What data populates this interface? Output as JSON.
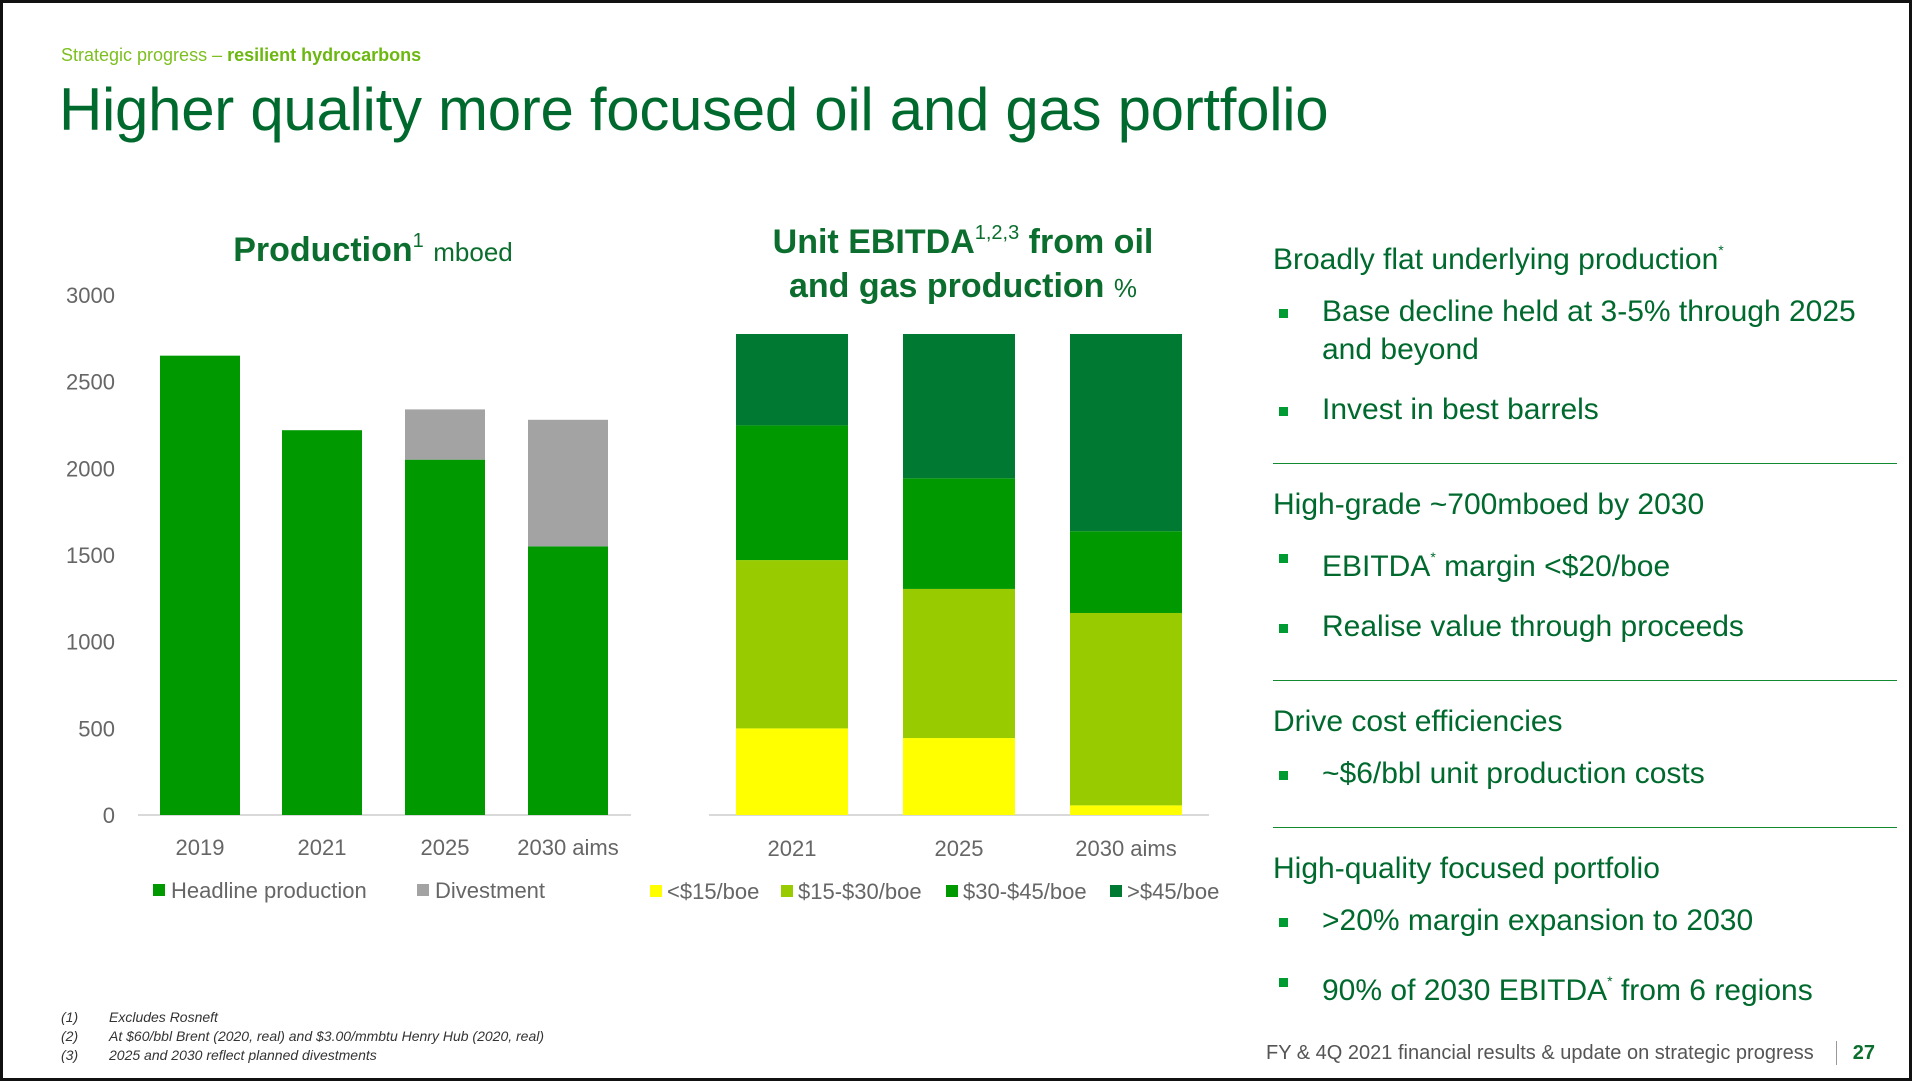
{
  "header": {
    "kicker_prefix": "Strategic progress – ",
    "kicker_bold": "resilient hydrocarbons",
    "title": "Higher quality more focused oil and gas portfolio"
  },
  "production_title": {
    "main": "Production",
    "sup": "1",
    "unit": "mboed"
  },
  "ebitda_title": {
    "line1": "Unit EBITDA",
    "sup": "1,2,3",
    "line1b": " from oil",
    "line2": "and gas production",
    "unit": "%"
  },
  "colors": {
    "headline": "#009a00",
    "divestment": "#a3a3a3",
    "lt15": "#ffff00",
    "15to30": "#99cc00",
    "30to45": "#009a00",
    "gt45": "#007a33"
  },
  "chart_data": [
    {
      "type": "bar",
      "stacked": true,
      "title": "Production mboed",
      "categories": [
        "2019",
        "2021",
        "2025",
        "2030 aims"
      ],
      "ylim": [
        0,
        3000
      ],
      "yticks": [
        0,
        500,
        1000,
        1500,
        2000,
        2500,
        3000
      ],
      "series": [
        {
          "name": "Headline production",
          "color": "#009a00",
          "values": [
            2650,
            2220,
            2050,
            1550
          ]
        },
        {
          "name": "Divestment",
          "color": "#a3a3a3",
          "values": [
            0,
            0,
            290,
            730
          ]
        }
      ],
      "legend": "bottom",
      "grid": false
    },
    {
      "type": "bar",
      "stacked": true,
      "title": "Unit EBITDA from oil and gas production %",
      "categories": [
        "2021",
        "2025",
        "2030 aims"
      ],
      "ylim": [
        0,
        100
      ],
      "series": [
        {
          "name": "<$15/boe",
          "color": "#ffff00",
          "values": [
            18,
            16,
            2
          ]
        },
        {
          "name": "$15-$30/boe",
          "color": "#99cc00",
          "values": [
            35,
            31,
            40
          ]
        },
        {
          "name": "$30-$45/boe",
          "color": "#009a00",
          "values": [
            28,
            23,
            17
          ]
        },
        {
          "name": ">$45/boe",
          "color": "#007a33",
          "values": [
            19,
            30,
            41
          ]
        }
      ],
      "legend": "bottom",
      "grid": false
    }
  ],
  "right_panel": [
    {
      "heading": "Broadly flat underlying production",
      "heading_sup": "*",
      "bullets": [
        {
          "text": "Base decline held at 3-5% through 2025 and beyond"
        },
        {
          "text": "Invest in best barrels"
        }
      ]
    },
    {
      "heading": "High-grade ~700mboed by 2030",
      "heading_sup": "",
      "bullets": [
        {
          "pre": "EBITDA",
          "sup": "*",
          "post": " margin <$20/boe"
        },
        {
          "text": "Realise value through proceeds"
        }
      ]
    },
    {
      "heading": "Drive cost efficiencies",
      "heading_sup": "",
      "bullets": [
        {
          "text": "~$6/bbl unit production costs"
        }
      ]
    },
    {
      "heading": "High-quality focused portfolio",
      "heading_sup": "",
      "bullets": [
        {
          "text": ">20% margin expansion to 2030"
        },
        {
          "pre": "90% of 2030 EBITDA",
          "sup": "*",
          "post": " from 6 regions"
        }
      ]
    }
  ],
  "footnotes": [
    {
      "num": "(1)",
      "text": "Excludes Rosneft"
    },
    {
      "num": "(2)",
      "text": "At $60/bbl Brent (2020, real) and $3.00/mmbtu Henry Hub (2020, real)"
    },
    {
      "num": "(3)",
      "text": "2025 and 2030 reflect planned divestments"
    }
  ],
  "footer": {
    "text": "FY & 4Q 2021 financial results & update on strategic progress",
    "page": "27"
  }
}
